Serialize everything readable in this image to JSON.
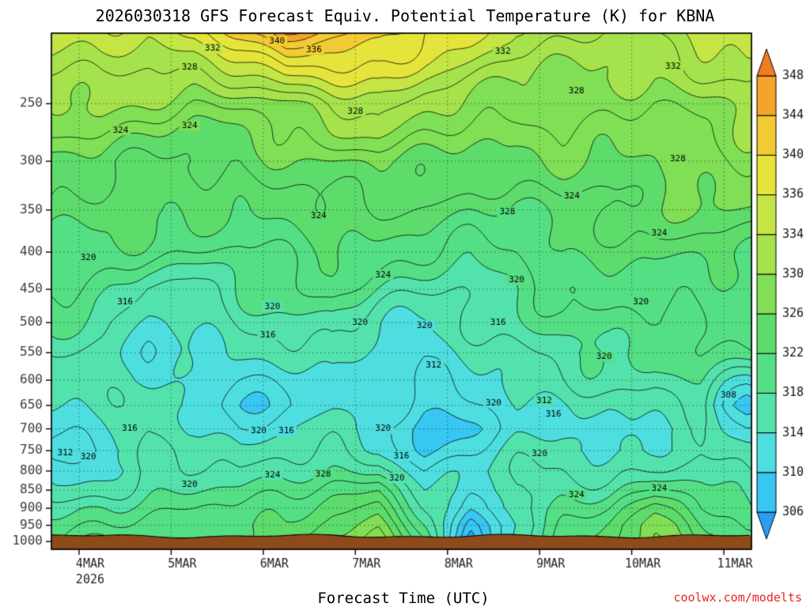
{
  "chart_data": {
    "type": "heatmap",
    "subtype": "filled-contour-cross-section",
    "title": "2026030318 GFS Forecast Equiv. Potential Temperature (K) for KBNA",
    "xlabel": "Forecast Time (UTC)",
    "ylabel": "",
    "watermark": "coolwx.com/modelts",
    "x_axis": {
      "range_days": [
        3.7,
        11.3
      ],
      "tick_days": [
        4,
        5,
        6,
        7,
        8,
        9,
        10,
        11
      ],
      "tick_labels": [
        "4MAR",
        "5MAR",
        "6MAR",
        "7MAR",
        "8MAR",
        "9MAR",
        "10MAR",
        "11MAR"
      ],
      "year_label": "2026"
    },
    "y_axis": {
      "scale": "log",
      "range_hpa": [
        200,
        1025
      ],
      "ticks": [
        250,
        300,
        350,
        400,
        450,
        500,
        550,
        600,
        650,
        700,
        750,
        800,
        850,
        900,
        950,
        1000
      ]
    },
    "colorbar": {
      "boundaries": [
        306,
        310,
        314,
        318,
        322,
        326,
        330,
        334,
        336,
        340,
        344,
        348
      ],
      "cell_colors": [
        "#38c6f2",
        "#4edee0",
        "#54e2ac",
        "#55df85",
        "#5ddc6c",
        "#80df55",
        "#a6e24b",
        "#c4e544",
        "#e4e43b",
        "#f2ca33",
        "#f5a42b"
      ],
      "under_color": "#2b9ef2",
      "over_color": "#f07c22"
    },
    "contours": {
      "interval": 2,
      "min": 304,
      "max": 350,
      "line_color": "#000000"
    },
    "grid": {
      "days": [
        3.75,
        4.25,
        4.75,
        5.25,
        5.75,
        6.25,
        6.75,
        7.25,
        7.75,
        8.25,
        8.75,
        9.25,
        9.75,
        10.25,
        10.75,
        11.25
      ],
      "pressures_hpa": [
        200,
        250,
        300,
        350,
        400,
        450,
        500,
        550,
        600,
        650,
        700,
        750,
        800,
        850,
        900,
        950,
        1000
      ],
      "values_k": [
        [
          335,
          336,
          335,
          336,
          340,
          346,
          344,
          342,
          338,
          336,
          333,
          333,
          332,
          332,
          334,
          336
        ],
        [
          330,
          330,
          329,
          328,
          329,
          330,
          332,
          333,
          331,
          330,
          329,
          329,
          328,
          328,
          330,
          331
        ],
        [
          325,
          325,
          324,
          324,
          324,
          325,
          326,
          327,
          326,
          325,
          325,
          326,
          326,
          326,
          327,
          328
        ],
        [
          324,
          324,
          323,
          322,
          322,
          323,
          324,
          324,
          323,
          322,
          322,
          324,
          324,
          325,
          325,
          326
        ],
        [
          322,
          321,
          320,
          320,
          320,
          321,
          322,
          321,
          320,
          319,
          320,
          322,
          322,
          323,
          323,
          323
        ],
        [
          320,
          319,
          316,
          316,
          318,
          319,
          320,
          318,
          317,
          317,
          318,
          320,
          321,
          321,
          321,
          321
        ],
        [
          318,
          317,
          314,
          314,
          316,
          317,
          318,
          315,
          314,
          315,
          317,
          319,
          320,
          320,
          320,
          320
        ],
        [
          317,
          316,
          313,
          313,
          314,
          315,
          316,
          313,
          312,
          314,
          316,
          318,
          319,
          318,
          319,
          319
        ],
        [
          316,
          315,
          313,
          312,
          312,
          313,
          314,
          312,
          311,
          313,
          315,
          316,
          317,
          316,
          318,
          314
        ],
        [
          314,
          314,
          315,
          314,
          311,
          312,
          313,
          312,
          310,
          312,
          314,
          314,
          314,
          315,
          317,
          309
        ],
        [
          312,
          313,
          316,
          315,
          312,
          313,
          314,
          313,
          309,
          311,
          313,
          313,
          312,
          314,
          316,
          312
        ],
        [
          310,
          312,
          317,
          316,
          314,
          315,
          316,
          315,
          310,
          312,
          314,
          314,
          313,
          315,
          316,
          315
        ],
        [
          311,
          313,
          317,
          317,
          316,
          317,
          318,
          318,
          312,
          313,
          315,
          316,
          316,
          317,
          317,
          315
        ],
        [
          314,
          316,
          318,
          318,
          318,
          319,
          321,
          322,
          314,
          312,
          316,
          318,
          318,
          320,
          318,
          316
        ],
        [
          318,
          319,
          319,
          319,
          320,
          321,
          324,
          325,
          316,
          310,
          316,
          319,
          320,
          324,
          320,
          318
        ],
        [
          320,
          320,
          320,
          320,
          322,
          323,
          326,
          327,
          318,
          306,
          315,
          320,
          322,
          327,
          323,
          320
        ],
        [
          321,
          322,
          321,
          321,
          323,
          324,
          327,
          328,
          320,
          304,
          316,
          321,
          323,
          328,
          325,
          322
        ]
      ]
    },
    "contour_labels": [
      {
        "v": 332,
        "day": 5.45,
        "p": 210
      },
      {
        "v": 340,
        "day": 6.15,
        "p": 205
      },
      {
        "v": 336,
        "day": 6.55,
        "p": 211
      },
      {
        "v": 332,
        "day": 8.6,
        "p": 212
      },
      {
        "v": 332,
        "day": 10.45,
        "p": 222
      },
      {
        "v": 328,
        "day": 5.2,
        "p": 223
      },
      {
        "v": 328,
        "day": 7.0,
        "p": 256
      },
      {
        "v": 328,
        "day": 9.4,
        "p": 240
      },
      {
        "v": 328,
        "day": 10.5,
        "p": 298
      },
      {
        "v": 328,
        "day": 8.65,
        "p": 352
      },
      {
        "v": 324,
        "day": 4.45,
        "p": 272
      },
      {
        "v": 324,
        "day": 5.2,
        "p": 268
      },
      {
        "v": 324,
        "day": 6.6,
        "p": 357
      },
      {
        "v": 324,
        "day": 7.3,
        "p": 430
      },
      {
        "v": 324,
        "day": 9.35,
        "p": 335
      },
      {
        "v": 324,
        "day": 10.3,
        "p": 377
      },
      {
        "v": 320,
        "day": 4.1,
        "p": 407
      },
      {
        "v": 320,
        "day": 6.1,
        "p": 475
      },
      {
        "v": 320,
        "day": 7.05,
        "p": 500
      },
      {
        "v": 320,
        "day": 7.75,
        "p": 505
      },
      {
        "v": 320,
        "day": 8.75,
        "p": 437
      },
      {
        "v": 320,
        "day": 10.1,
        "p": 468
      },
      {
        "v": 320,
        "day": 9.7,
        "p": 557
      },
      {
        "v": 316,
        "day": 4.5,
        "p": 468
      },
      {
        "v": 316,
        "day": 6.05,
        "p": 520
      },
      {
        "v": 316,
        "day": 8.55,
        "p": 500
      },
      {
        "v": 312,
        "day": 3.85,
        "p": 755
      },
      {
        "v": 312,
        "day": 7.85,
        "p": 572
      },
      {
        "v": 312,
        "day": 9.05,
        "p": 640
      },
      {
        "v": 316,
        "day": 4.55,
        "p": 700
      },
      {
        "v": 320,
        "day": 5.95,
        "p": 705
      },
      {
        "v": 316,
        "day": 6.25,
        "p": 705
      },
      {
        "v": 320,
        "day": 7.3,
        "p": 700
      },
      {
        "v": 316,
        "day": 7.5,
        "p": 763
      },
      {
        "v": 316,
        "day": 9.15,
        "p": 668
      },
      {
        "v": 320,
        "day": 8.5,
        "p": 645
      },
      {
        "v": 320,
        "day": 9.0,
        "p": 758
      },
      {
        "v": 320,
        "day": 4.1,
        "p": 765
      },
      {
        "v": 320,
        "day": 5.2,
        "p": 835
      },
      {
        "v": 320,
        "day": 7.45,
        "p": 818
      },
      {
        "v": 324,
        "day": 6.1,
        "p": 810
      },
      {
        "v": 328,
        "day": 6.65,
        "p": 808
      },
      {
        "v": 324,
        "day": 9.4,
        "p": 862
      },
      {
        "v": 324,
        "day": 10.3,
        "p": 845
      },
      {
        "v": 308,
        "day": 11.05,
        "p": 630
      }
    ],
    "ground": {
      "color": "#8f4a1a",
      "top_pressure_hpa": 983
    },
    "frame_color": "#000000"
  }
}
